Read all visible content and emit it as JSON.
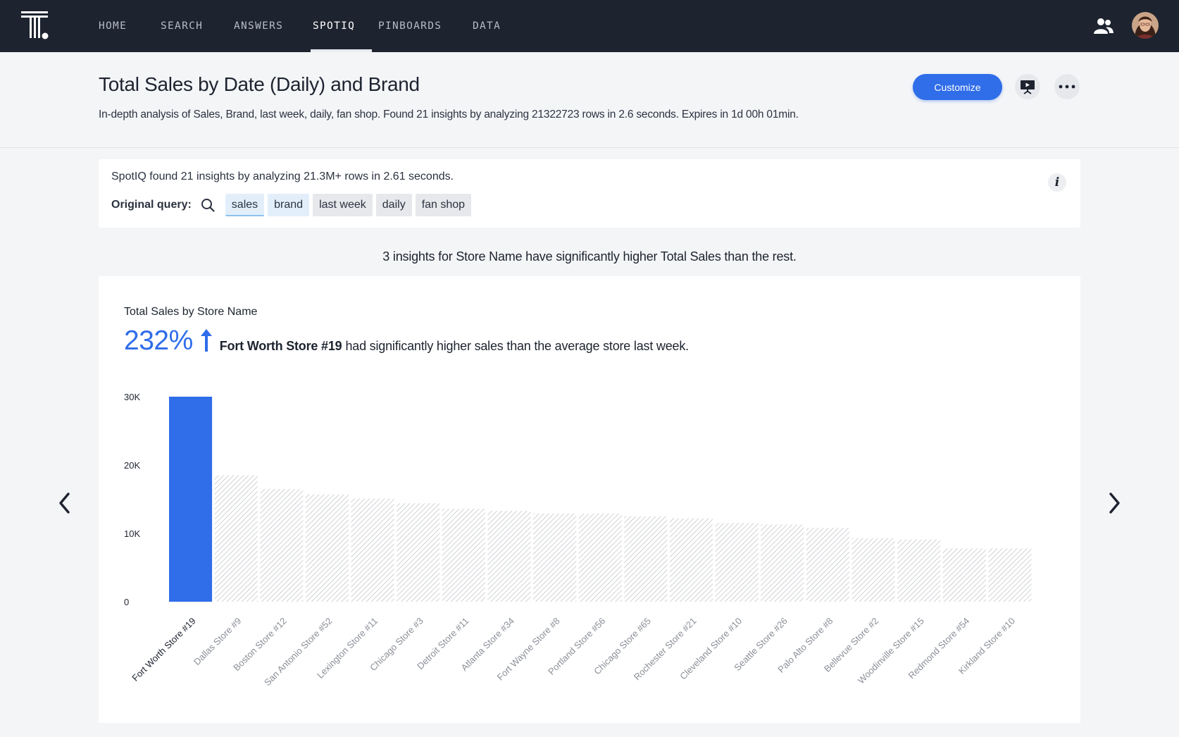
{
  "nav": {
    "items": [
      "HOME",
      "SEARCH",
      "ANSWERS",
      "SPOTIQ",
      "PINBOARDS",
      "DATA"
    ],
    "active": "SPOTIQ"
  },
  "header": {
    "title": "Total Sales by Date (Daily) and Brand",
    "subtitle": "In-depth analysis of Sales, Brand, last week, daily, fan shop. Found 21 insights by analyzing 21322723 rows in 2.6 seconds. Expires in 1d 00h 01min.",
    "customize_label": "Customize"
  },
  "summary": {
    "text": "SpotIQ found 21 insights by analyzing 21.3M+ rows in 2.61 seconds.",
    "query_label": "Original query:",
    "tokens": [
      {
        "text": "sales",
        "kind": "blue"
      },
      {
        "text": "brand",
        "kind": "blue"
      },
      {
        "text": "last week",
        "kind": "grey"
      },
      {
        "text": "daily",
        "kind": "grey"
      },
      {
        "text": "fan shop",
        "kind": "grey"
      }
    ],
    "info_label": "i"
  },
  "insights_heading": "3 insights for Store Name have significantly higher Total Sales than the rest.",
  "insight": {
    "card_title": "Total Sales by Store Name",
    "percent": "232%",
    "store": "Fort Worth Store #19",
    "rest": "had significantly higher sales than the average store last week."
  },
  "colors": {
    "nav_bg": "#1d232f",
    "accent": "#2f6de9",
    "highlight_bar": "#2f6de9",
    "other_bars": "hatched-grey"
  },
  "icons": {
    "users": "users-icon",
    "present": "presentation-icon",
    "more": "more-dots-icon",
    "search": "search-icon",
    "prev": "chevron-left-icon",
    "next": "chevron-right-icon"
  },
  "chart_data": {
    "type": "bar",
    "title": "Total Sales by Store Name",
    "xlabel": "",
    "ylabel": "",
    "ylim": [
      0,
      30000
    ],
    "yticks": [
      0,
      10000,
      20000,
      30000
    ],
    "ytick_labels": [
      "0",
      "10K",
      "20K",
      "30K"
    ],
    "highlight": "Fort Worth Store #19",
    "grid": false,
    "categories": [
      "Fort Worth Store #19",
      "Dallas Store #9",
      "Boston Store #12",
      "San Antonio Store #52",
      "Lexington Store #11",
      "Chicago Store #3",
      "Detroit Store #11",
      "Atlanta Store #34",
      "Fort Wayne Store #8",
      "Portland Store #56",
      "Chicago Store #65",
      "Rochester Store #21",
      "Cleveland Store #10",
      "Seattle Store #26",
      "Palo Alto Store #8",
      "Bellevue Store #2",
      "Woodinville Store #15",
      "Redmond Store #54",
      "Kirkland Store #10"
    ],
    "values": [
      30000,
      18500,
      16500,
      15700,
      15100,
      14400,
      13600,
      13300,
      12900,
      12900,
      12500,
      12200,
      11500,
      11300,
      10800,
      9300,
      9100,
      7800,
      7800
    ]
  }
}
